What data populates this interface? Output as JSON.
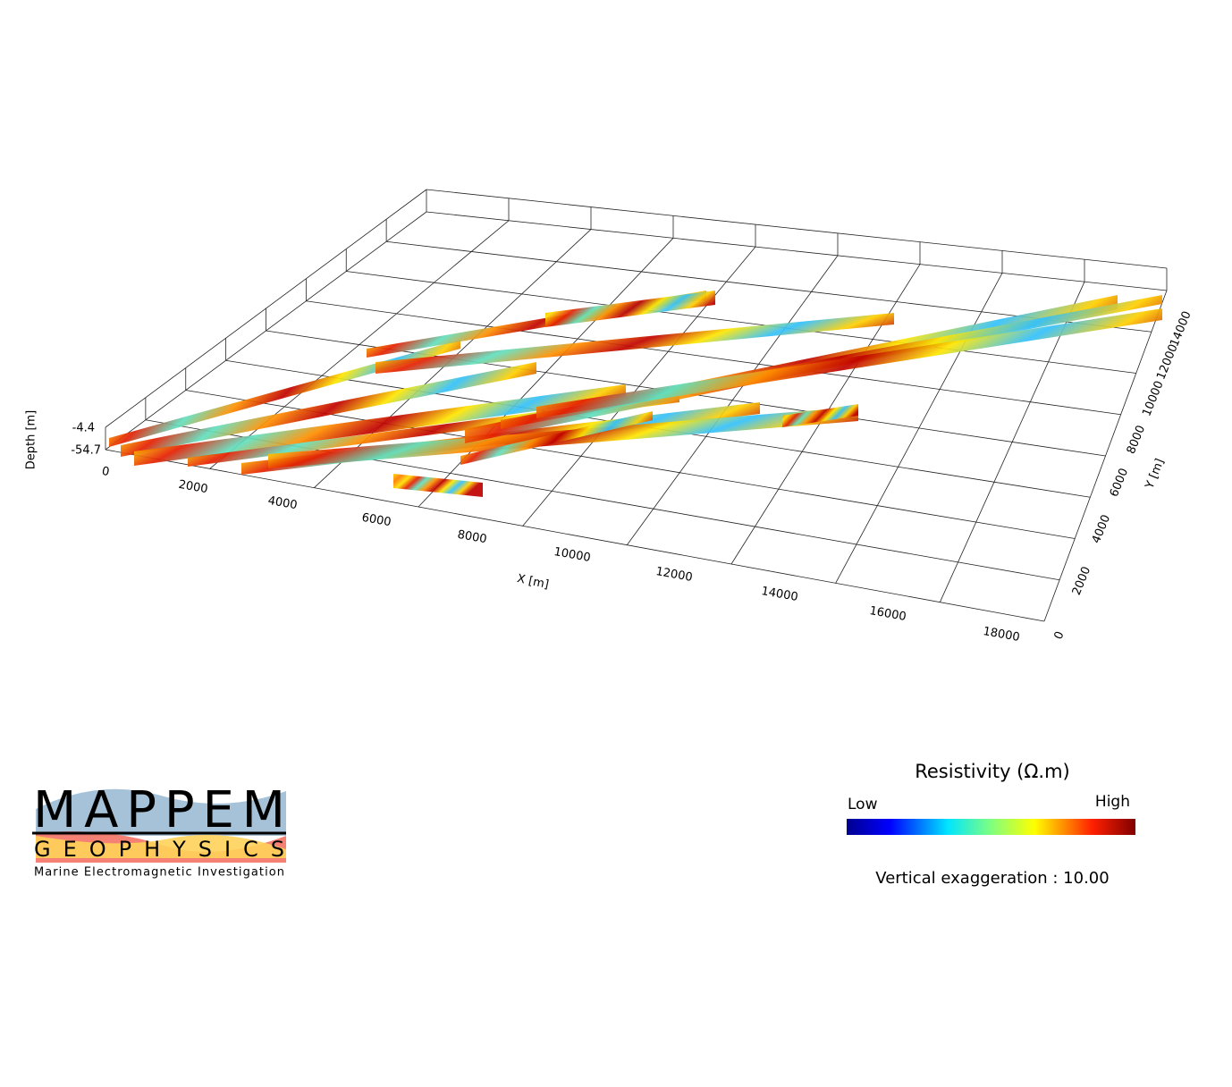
{
  "plot": {
    "x_axis": {
      "label": "X [m]",
      "ticks": [
        "0",
        "2000",
        "4000",
        "6000",
        "8000",
        "10000",
        "12000",
        "14000",
        "16000",
        "18000"
      ]
    },
    "y_axis": {
      "label": "Y [m]",
      "ticks": [
        "0",
        "2000",
        "4000",
        "6000",
        "8000",
        "10000",
        "12000",
        "14000"
      ]
    },
    "depth_axis": {
      "label": "Depth [m]",
      "ticks": [
        "-4.4",
        "-54.7"
      ]
    }
  },
  "colorbar": {
    "title": "Resistivity (Ω.m)",
    "low": "Low",
    "high": "High"
  },
  "exaggeration": "Vertical exaggeration : 10.00",
  "logo": {
    "name": "MAPPEM",
    "sub": "GEOPHYSICS",
    "tagline": "Marine Electromagnetic Investigation"
  }
}
